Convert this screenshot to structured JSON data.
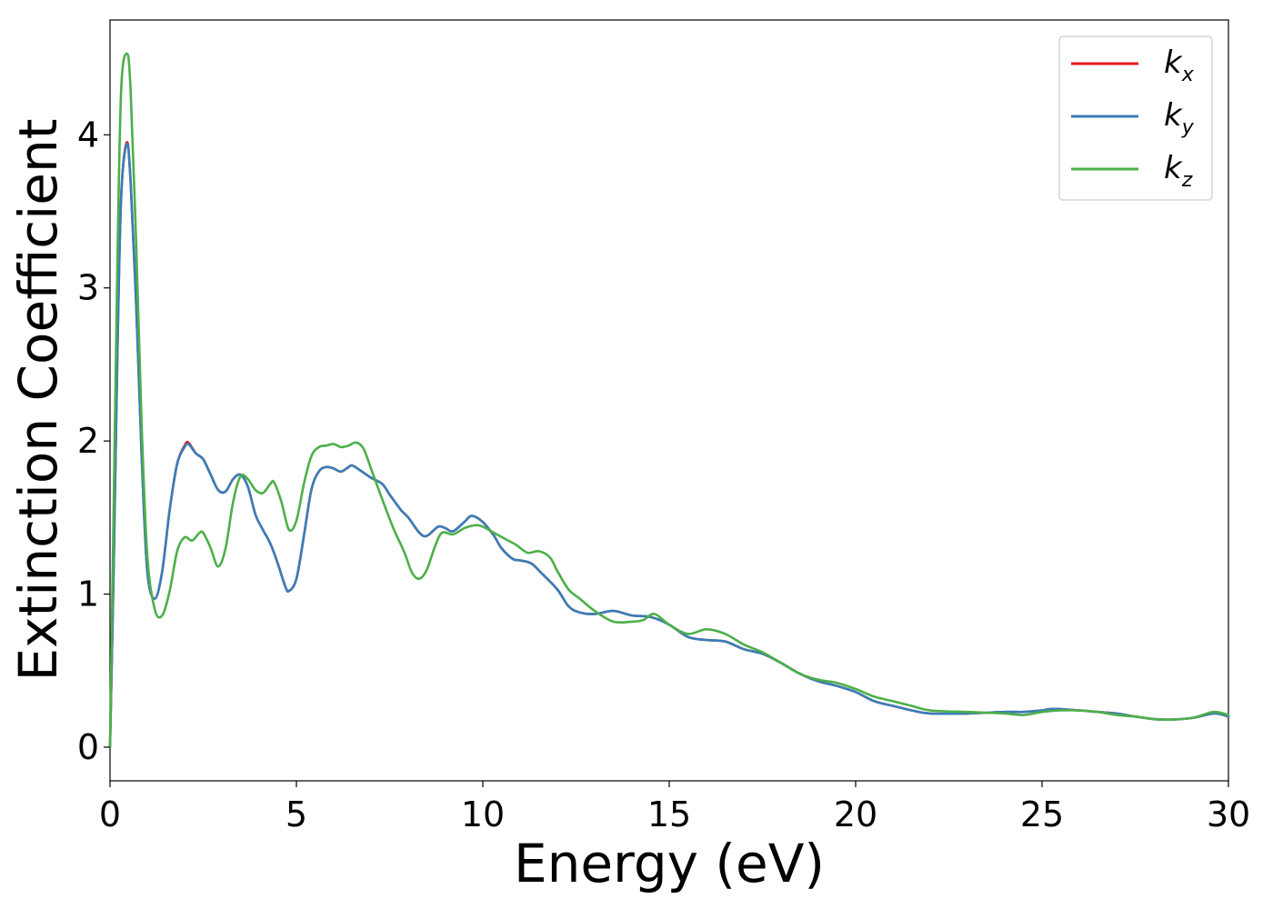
{
  "chart_data": {
    "type": "line",
    "title": "",
    "xlabel": "Energy (eV)",
    "ylabel": "Extinction Coefficient",
    "xlim": [
      0,
      30
    ],
    "ylim": [
      -0.22,
      4.75
    ],
    "xticks": [
      0,
      5,
      10,
      15,
      20,
      25,
      30
    ],
    "yticks": [
      0,
      1,
      2,
      3,
      4
    ],
    "xtick_labels": [
      "0",
      "5",
      "10",
      "15",
      "20",
      "25",
      "30"
    ],
    "ytick_labels": [
      "0",
      "1",
      "2",
      "3",
      "4"
    ],
    "grid": false,
    "legend_position": "top-right",
    "series": [
      {
        "name": "k",
        "subscript": "x",
        "color": "#e41a1c",
        "points": [
          [
            0,
            0
          ],
          [
            0.1,
            1.2
          ],
          [
            0.2,
            2.6
          ],
          [
            0.3,
            3.6
          ],
          [
            0.45,
            3.95
          ],
          [
            0.55,
            3.7
          ],
          [
            0.7,
            2.9
          ],
          [
            0.85,
            1.9
          ],
          [
            1.0,
            1.15
          ],
          [
            1.2,
            0.97
          ],
          [
            1.4,
            1.15
          ],
          [
            1.6,
            1.55
          ],
          [
            1.8,
            1.85
          ],
          [
            2.0,
            1.97
          ],
          [
            2.1,
            1.99
          ],
          [
            2.3,
            1.92
          ],
          [
            2.5,
            1.88
          ],
          [
            2.7,
            1.78
          ],
          [
            2.9,
            1.68
          ],
          [
            3.1,
            1.67
          ],
          [
            3.3,
            1.75
          ],
          [
            3.5,
            1.78
          ],
          [
            3.7,
            1.7
          ],
          [
            3.9,
            1.52
          ],
          [
            4.1,
            1.42
          ],
          [
            4.3,
            1.33
          ],
          [
            4.5,
            1.2
          ],
          [
            4.7,
            1.05
          ],
          [
            4.8,
            1.02
          ],
          [
            5.0,
            1.1
          ],
          [
            5.2,
            1.38
          ],
          [
            5.4,
            1.68
          ],
          [
            5.6,
            1.8
          ],
          [
            5.8,
            1.83
          ],
          [
            6.0,
            1.82
          ],
          [
            6.2,
            1.8
          ],
          [
            6.4,
            1.83
          ],
          [
            6.5,
            1.84
          ],
          [
            6.7,
            1.81
          ],
          [
            7.0,
            1.76
          ],
          [
            7.3,
            1.72
          ],
          [
            7.5,
            1.65
          ],
          [
            7.8,
            1.55
          ],
          [
            8.0,
            1.5
          ],
          [
            8.3,
            1.4
          ],
          [
            8.5,
            1.38
          ],
          [
            8.8,
            1.44
          ],
          [
            9.0,
            1.43
          ],
          [
            9.2,
            1.41
          ],
          [
            9.5,
            1.47
          ],
          [
            9.7,
            1.51
          ],
          [
            10.0,
            1.47
          ],
          [
            10.3,
            1.38
          ],
          [
            10.5,
            1.3
          ],
          [
            10.8,
            1.23
          ],
          [
            11.0,
            1.22
          ],
          [
            11.3,
            1.2
          ],
          [
            11.6,
            1.13
          ],
          [
            12.0,
            1.03
          ],
          [
            12.3,
            0.92
          ],
          [
            12.6,
            0.88
          ],
          [
            13.0,
            0.87
          ],
          [
            13.5,
            0.89
          ],
          [
            14.0,
            0.86
          ],
          [
            14.5,
            0.85
          ],
          [
            15.0,
            0.8
          ],
          [
            15.5,
            0.72
          ],
          [
            16.0,
            0.7
          ],
          [
            16.5,
            0.69
          ],
          [
            17.0,
            0.64
          ],
          [
            17.5,
            0.61
          ],
          [
            18.0,
            0.55
          ],
          [
            18.5,
            0.48
          ],
          [
            19.0,
            0.43
          ],
          [
            19.5,
            0.4
          ],
          [
            20.0,
            0.36
          ],
          [
            20.5,
            0.3
          ],
          [
            21.0,
            0.27
          ],
          [
            21.5,
            0.24
          ],
          [
            22.0,
            0.22
          ],
          [
            23.0,
            0.22
          ],
          [
            24.0,
            0.23
          ],
          [
            24.5,
            0.23
          ],
          [
            25.0,
            0.24
          ],
          [
            25.3,
            0.25
          ],
          [
            26.0,
            0.24
          ],
          [
            26.5,
            0.23
          ],
          [
            27.0,
            0.22
          ],
          [
            27.5,
            0.2
          ],
          [
            28.2,
            0.18
          ],
          [
            29.0,
            0.19
          ],
          [
            29.6,
            0.22
          ],
          [
            30.0,
            0.2
          ]
        ]
      },
      {
        "name": "k",
        "subscript": "y",
        "color": "#377eb8",
        "points": [
          [
            0,
            0
          ],
          [
            0.1,
            1.2
          ],
          [
            0.2,
            2.6
          ],
          [
            0.3,
            3.6
          ],
          [
            0.45,
            3.94
          ],
          [
            0.55,
            3.7
          ],
          [
            0.7,
            2.9
          ],
          [
            0.85,
            1.9
          ],
          [
            1.0,
            1.15
          ],
          [
            1.2,
            0.97
          ],
          [
            1.4,
            1.15
          ],
          [
            1.6,
            1.55
          ],
          [
            1.8,
            1.85
          ],
          [
            2.0,
            1.96
          ],
          [
            2.1,
            1.98
          ],
          [
            2.3,
            1.92
          ],
          [
            2.5,
            1.88
          ],
          [
            2.7,
            1.78
          ],
          [
            2.9,
            1.68
          ],
          [
            3.1,
            1.67
          ],
          [
            3.3,
            1.75
          ],
          [
            3.5,
            1.78
          ],
          [
            3.7,
            1.7
          ],
          [
            3.9,
            1.52
          ],
          [
            4.1,
            1.42
          ],
          [
            4.3,
            1.33
          ],
          [
            4.5,
            1.2
          ],
          [
            4.7,
            1.05
          ],
          [
            4.8,
            1.02
          ],
          [
            5.0,
            1.1
          ],
          [
            5.2,
            1.38
          ],
          [
            5.4,
            1.68
          ],
          [
            5.6,
            1.8
          ],
          [
            5.8,
            1.83
          ],
          [
            6.0,
            1.82
          ],
          [
            6.2,
            1.8
          ],
          [
            6.4,
            1.83
          ],
          [
            6.5,
            1.84
          ],
          [
            6.7,
            1.81
          ],
          [
            7.0,
            1.76
          ],
          [
            7.3,
            1.72
          ],
          [
            7.5,
            1.65
          ],
          [
            7.8,
            1.55
          ],
          [
            8.0,
            1.5
          ],
          [
            8.3,
            1.4
          ],
          [
            8.5,
            1.38
          ],
          [
            8.8,
            1.44
          ],
          [
            9.0,
            1.43
          ],
          [
            9.2,
            1.41
          ],
          [
            9.5,
            1.47
          ],
          [
            9.7,
            1.51
          ],
          [
            10.0,
            1.47
          ],
          [
            10.3,
            1.38
          ],
          [
            10.5,
            1.3
          ],
          [
            10.8,
            1.23
          ],
          [
            11.0,
            1.22
          ],
          [
            11.3,
            1.2
          ],
          [
            11.6,
            1.13
          ],
          [
            12.0,
            1.03
          ],
          [
            12.3,
            0.92
          ],
          [
            12.6,
            0.88
          ],
          [
            13.0,
            0.87
          ],
          [
            13.5,
            0.89
          ],
          [
            14.0,
            0.86
          ],
          [
            14.5,
            0.85
          ],
          [
            15.0,
            0.8
          ],
          [
            15.5,
            0.72
          ],
          [
            16.0,
            0.7
          ],
          [
            16.5,
            0.69
          ],
          [
            17.0,
            0.64
          ],
          [
            17.5,
            0.61
          ],
          [
            18.0,
            0.55
          ],
          [
            18.5,
            0.48
          ],
          [
            19.0,
            0.43
          ],
          [
            19.5,
            0.4
          ],
          [
            20.0,
            0.36
          ],
          [
            20.5,
            0.3
          ],
          [
            21.0,
            0.27
          ],
          [
            21.5,
            0.24
          ],
          [
            22.0,
            0.22
          ],
          [
            23.0,
            0.22
          ],
          [
            24.0,
            0.23
          ],
          [
            24.5,
            0.23
          ],
          [
            25.0,
            0.24
          ],
          [
            25.3,
            0.25
          ],
          [
            26.0,
            0.24
          ],
          [
            26.5,
            0.23
          ],
          [
            27.0,
            0.22
          ],
          [
            27.5,
            0.2
          ],
          [
            28.2,
            0.18
          ],
          [
            29.0,
            0.19
          ],
          [
            29.6,
            0.22
          ],
          [
            30.0,
            0.2
          ]
        ]
      },
      {
        "name": "k",
        "subscript": "z",
        "color": "#4daf4a",
        "points": [
          [
            0,
            0
          ],
          [
            0.1,
            1.6
          ],
          [
            0.2,
            3.2
          ],
          [
            0.3,
            4.3
          ],
          [
            0.45,
            4.53
          ],
          [
            0.55,
            4.3
          ],
          [
            0.7,
            3.3
          ],
          [
            0.85,
            2.1
          ],
          [
            1.0,
            1.25
          ],
          [
            1.2,
            0.9
          ],
          [
            1.4,
            0.86
          ],
          [
            1.6,
            1.02
          ],
          [
            1.8,
            1.28
          ],
          [
            2.0,
            1.37
          ],
          [
            2.2,
            1.35
          ],
          [
            2.4,
            1.4
          ],
          [
            2.5,
            1.4
          ],
          [
            2.7,
            1.3
          ],
          [
            2.9,
            1.18
          ],
          [
            3.1,
            1.3
          ],
          [
            3.3,
            1.6
          ],
          [
            3.5,
            1.77
          ],
          [
            3.7,
            1.75
          ],
          [
            3.9,
            1.68
          ],
          [
            4.1,
            1.66
          ],
          [
            4.3,
            1.72
          ],
          [
            4.4,
            1.73
          ],
          [
            4.6,
            1.6
          ],
          [
            4.8,
            1.42
          ],
          [
            5.0,
            1.48
          ],
          [
            5.2,
            1.72
          ],
          [
            5.4,
            1.9
          ],
          [
            5.6,
            1.96
          ],
          [
            5.8,
            1.97
          ],
          [
            6.0,
            1.98
          ],
          [
            6.2,
            1.96
          ],
          [
            6.4,
            1.97
          ],
          [
            6.6,
            1.99
          ],
          [
            6.8,
            1.95
          ],
          [
            7.0,
            1.82
          ],
          [
            7.3,
            1.62
          ],
          [
            7.6,
            1.43
          ],
          [
            7.9,
            1.27
          ],
          [
            8.1,
            1.14
          ],
          [
            8.3,
            1.1
          ],
          [
            8.5,
            1.16
          ],
          [
            8.7,
            1.3
          ],
          [
            8.9,
            1.4
          ],
          [
            9.2,
            1.39
          ],
          [
            9.5,
            1.43
          ],
          [
            9.8,
            1.45
          ],
          [
            10.0,
            1.44
          ],
          [
            10.3,
            1.4
          ],
          [
            10.6,
            1.36
          ],
          [
            10.9,
            1.32
          ],
          [
            11.2,
            1.27
          ],
          [
            11.5,
            1.28
          ],
          [
            11.8,
            1.24
          ],
          [
            12.0,
            1.15
          ],
          [
            12.3,
            1.03
          ],
          [
            12.6,
            0.97
          ],
          [
            13.0,
            0.89
          ],
          [
            13.5,
            0.82
          ],
          [
            14.0,
            0.82
          ],
          [
            14.3,
            0.83
          ],
          [
            14.6,
            0.87
          ],
          [
            15.0,
            0.8
          ],
          [
            15.5,
            0.74
          ],
          [
            16.0,
            0.77
          ],
          [
            16.5,
            0.74
          ],
          [
            17.0,
            0.67
          ],
          [
            17.5,
            0.62
          ],
          [
            18.0,
            0.55
          ],
          [
            18.5,
            0.48
          ],
          [
            19.0,
            0.44
          ],
          [
            19.5,
            0.42
          ],
          [
            20.0,
            0.38
          ],
          [
            20.5,
            0.33
          ],
          [
            21.0,
            0.3
          ],
          [
            21.5,
            0.27
          ],
          [
            22.0,
            0.24
          ],
          [
            23.0,
            0.23
          ],
          [
            24.0,
            0.22
          ],
          [
            24.5,
            0.21
          ],
          [
            25.0,
            0.23
          ],
          [
            25.5,
            0.24
          ],
          [
            26.0,
            0.24
          ],
          [
            26.5,
            0.23
          ],
          [
            27.0,
            0.21
          ],
          [
            27.5,
            0.2
          ],
          [
            28.2,
            0.18
          ],
          [
            29.0,
            0.19
          ],
          [
            29.6,
            0.23
          ],
          [
            30.0,
            0.21
          ]
        ]
      }
    ]
  }
}
